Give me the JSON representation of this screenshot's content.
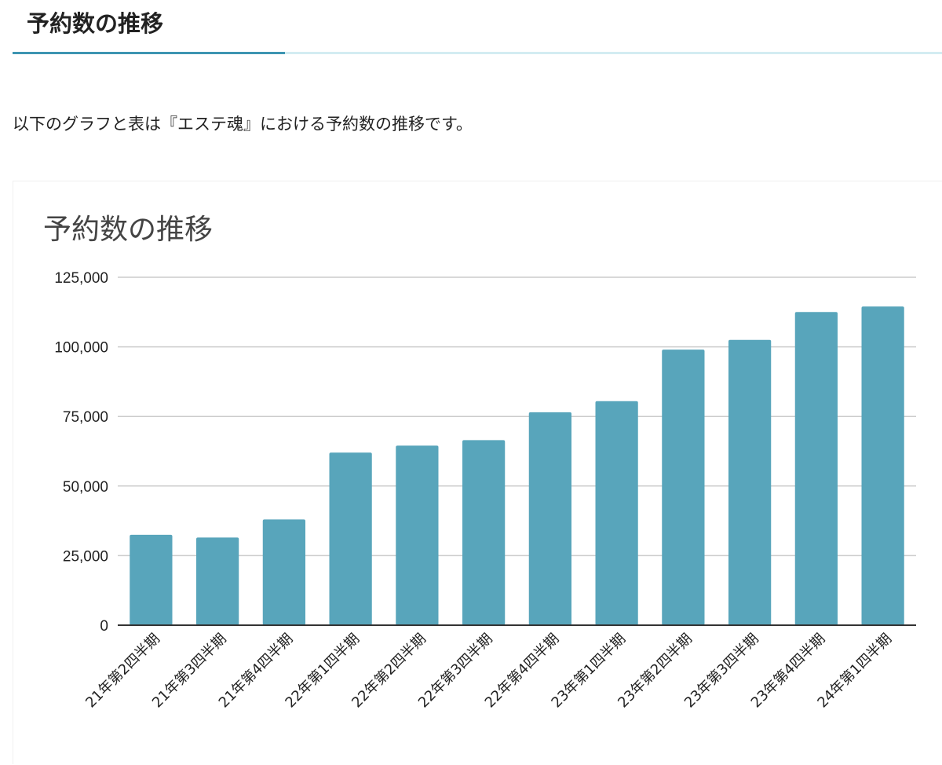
{
  "section": {
    "title": "予約数の推移"
  },
  "intro": {
    "text": "以下のグラフと表は『エステ魂』における予約数の推移です。"
  },
  "colors": {
    "accent": "#3d95b2",
    "accent_light": "#d3ecf2",
    "bar": "#58a5bb",
    "grid": "#cccccc",
    "axis": "#333333",
    "text": "#222222",
    "title_text": "#444444"
  },
  "chart_data": {
    "type": "bar",
    "title": "予約数の推移",
    "xlabel": "",
    "ylabel": "",
    "ylim": [
      0,
      125000
    ],
    "yticks": [
      0,
      25000,
      50000,
      75000,
      100000,
      125000
    ],
    "ytick_labels": [
      "0",
      "25,000",
      "50,000",
      "75,000",
      "100,000",
      "125,000"
    ],
    "grid": true,
    "legend": "none",
    "categories": [
      "21年第2四半期",
      "21年第3四半期",
      "21年第4四半期",
      "22年第1四半期",
      "22年第2四半期",
      "22年第3四半期",
      "22年第4四半期",
      "23年第1四半期",
      "23年第2四半期",
      "23年第3四半期",
      "23年第4四半期",
      "24年第1四半期"
    ],
    "values": [
      32500,
      31500,
      38000,
      62000,
      64500,
      66500,
      76500,
      80500,
      99000,
      102500,
      112500,
      114500
    ]
  }
}
